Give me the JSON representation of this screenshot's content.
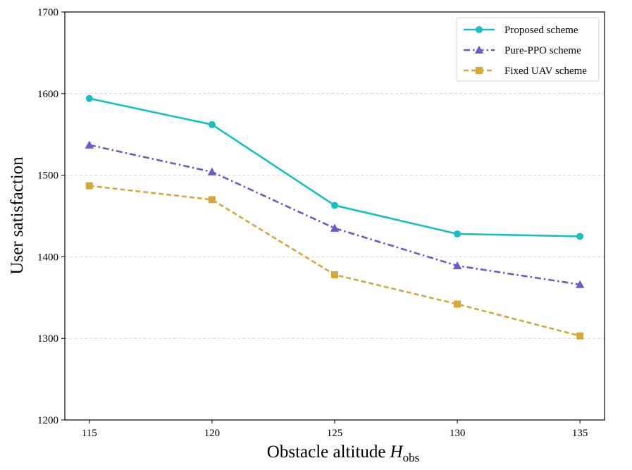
{
  "chart_data": {
    "type": "line",
    "title": "",
    "xlabel": "Obstacle altitude",
    "xlabel_symbol": "H",
    "xlabel_subscript": "obs",
    "ylabel": "User satisfaction",
    "x": [
      115,
      120,
      125,
      130,
      135
    ],
    "x_ticks": [
      "115",
      "120",
      "125",
      "130",
      "135"
    ],
    "xlim": [
      114,
      136
    ],
    "ylim": [
      1200,
      1700
    ],
    "y_ticks": [
      "1200",
      "1300",
      "1400",
      "1500",
      "1600",
      "1700"
    ],
    "grid": "horizontal dashed",
    "legend_position": "top-right",
    "series": [
      {
        "name": "Proposed scheme",
        "values": [
          1594,
          1562,
          1463,
          1428,
          1425
        ],
        "color": "#17BFC0",
        "marker": "circle",
        "dash": "solid"
      },
      {
        "name": "Pure-PPO scheme",
        "values": [
          1537,
          1504,
          1435,
          1389,
          1366
        ],
        "color": "#6A5ACD",
        "marker": "triangle",
        "dash": "dashdot"
      },
      {
        "name": "Fixed UAV scheme",
        "values": [
          1487,
          1470,
          1378,
          1342,
          1303
        ],
        "color": "#D4A83A",
        "marker": "square",
        "dash": "dashed"
      }
    ]
  }
}
